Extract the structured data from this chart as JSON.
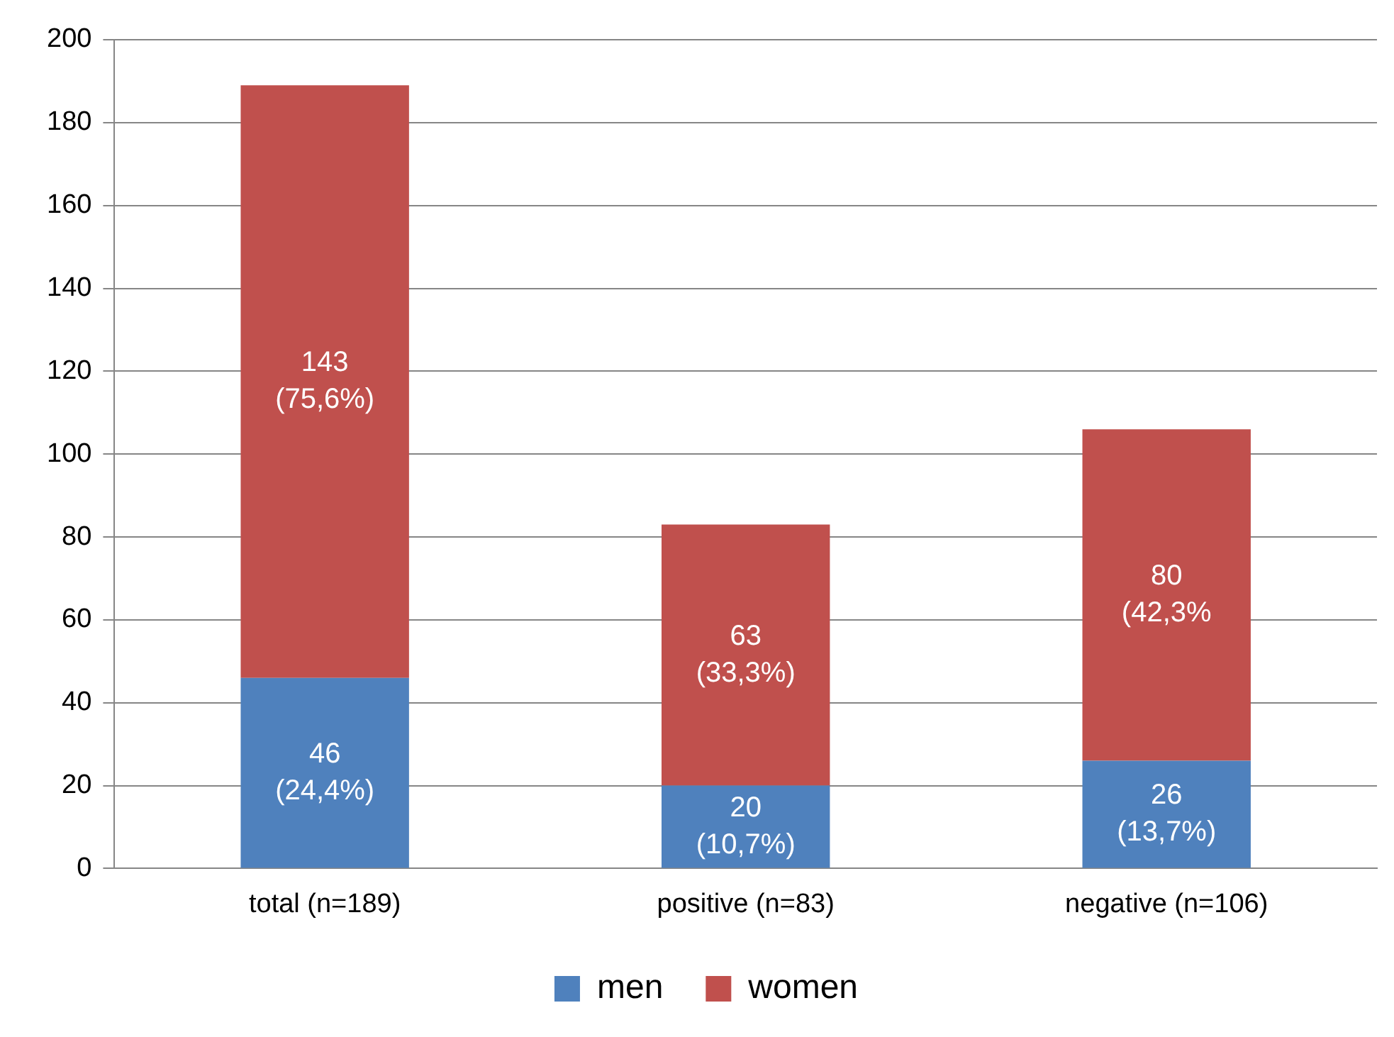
{
  "chart_data": {
    "type": "bar",
    "stacked": true,
    "categories": [
      "total (n=189)",
      "positive (n=83)",
      "negative (n=106)"
    ],
    "series": [
      {
        "name": "men",
        "color": "#4f81bd",
        "values": [
          46,
          20,
          26
        ],
        "value_labels": [
          "46\n(24,4%)",
          "20\n(10,7%)",
          "26\n(13,7%)"
        ]
      },
      {
        "name": "women",
        "color": "#c0504d",
        "values": [
          143,
          63,
          80
        ],
        "value_labels": [
          "143\n(75,6%)",
          "63\n(33,3%)",
          "80\n(42,3%"
        ]
      }
    ],
    "ylim": [
      0,
      200
    ],
    "yticks": [
      0,
      20,
      40,
      60,
      80,
      100,
      120,
      140,
      160,
      180,
      200
    ],
    "grid": "y",
    "legend": "bottom"
  }
}
